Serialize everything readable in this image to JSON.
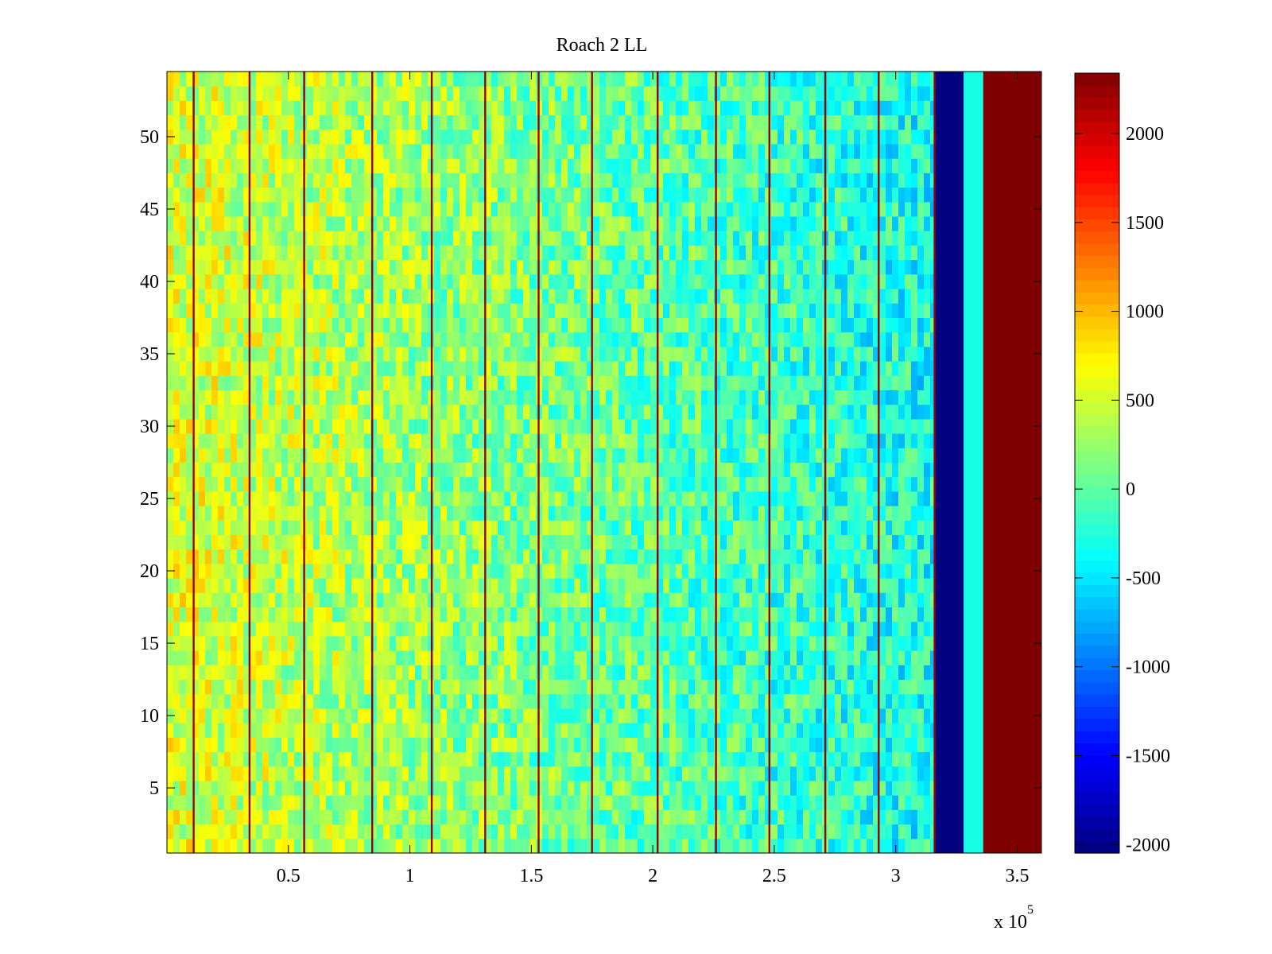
{
  "chart_data": {
    "type": "heatmap",
    "title": "Roach 2 LL",
    "xlabel": "",
    "ylabel": "",
    "x_multiplier_label": "x 10",
    "x_multiplier_exponent": "5",
    "xlim": [
      0,
      360000
    ],
    "ylim": [
      0.5,
      54.5
    ],
    "n_rows": 54,
    "x_ticks": [
      {
        "value": 50000,
        "label": "0.5"
      },
      {
        "value": 100000,
        "label": "1"
      },
      {
        "value": 150000,
        "label": "1.5"
      },
      {
        "value": 200000,
        "label": "2"
      },
      {
        "value": 250000,
        "label": "2.5"
      },
      {
        "value": 300000,
        "label": "3"
      },
      {
        "value": 350000,
        "label": "3.5"
      }
    ],
    "y_ticks": [
      {
        "value": 5,
        "label": "5"
      },
      {
        "value": 10,
        "label": "10"
      },
      {
        "value": 15,
        "label": "15"
      },
      {
        "value": 20,
        "label": "20"
      },
      {
        "value": 25,
        "label": "25"
      },
      {
        "value": 30,
        "label": "30"
      },
      {
        "value": 35,
        "label": "35"
      },
      {
        "value": 40,
        "label": "40"
      },
      {
        "value": 45,
        "label": "45"
      },
      {
        "value": 50,
        "label": "50"
      }
    ],
    "colorbar": {
      "colormap": "jet",
      "clim": [
        -2048,
        2340
      ],
      "ticks": [
        {
          "value": 2000,
          "label": "2000"
        },
        {
          "value": 1500,
          "label": "1500"
        },
        {
          "value": 1000,
          "label": "1000"
        },
        {
          "value": 500,
          "label": "500"
        },
        {
          "value": 0,
          "label": "0"
        },
        {
          "value": -500,
          "label": "-500"
        },
        {
          "value": -1000,
          "label": "-1000"
        },
        {
          "value": -1500,
          "label": "-1500"
        },
        {
          "value": -2000,
          "label": "-2000"
        }
      ]
    },
    "column_segments": [
      {
        "x_start": 0,
        "x_end": 316000,
        "approx_value": 0,
        "description": "noisy band, values mostly -600 to 800"
      },
      {
        "x_start": 316000,
        "x_end": 328000,
        "approx_value": -2048
      },
      {
        "x_start": 328000,
        "x_end": 336000,
        "approx_value": -300
      },
      {
        "x_start": 336000,
        "x_end": 360000,
        "approx_value": 2340
      }
    ],
    "high_value_vertical_lines_x": [
      11000,
      34000,
      56500,
      84500,
      109000,
      131000,
      153000,
      175000,
      202000,
      226000,
      248000,
      271000,
      293000,
      316000
    ]
  }
}
